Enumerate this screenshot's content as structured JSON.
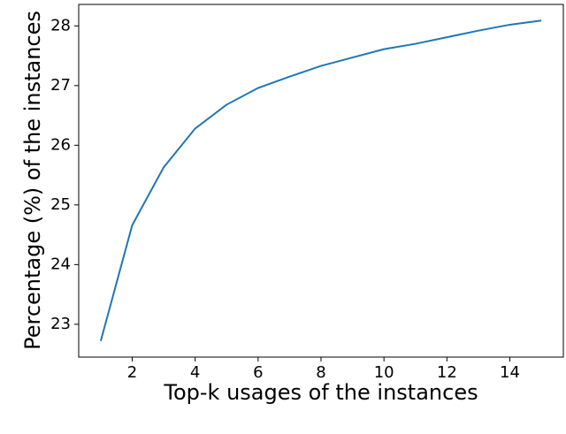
{
  "chart_data": {
    "type": "line",
    "x_label": "Top-k usages of the instances",
    "y_label": "Percentage (%) of the instances",
    "x": [
      1,
      2,
      3,
      4,
      5,
      6,
      7,
      8,
      9,
      10,
      11,
      12,
      13,
      14,
      15
    ],
    "series": [
      {
        "name": "Percentage",
        "color": "#1f77b4",
        "values": [
          22.72,
          24.66,
          25.63,
          26.28,
          26.68,
          26.96,
          27.15,
          27.33,
          27.47,
          27.61,
          27.7,
          27.81,
          27.92,
          28.02,
          28.09
        ]
      }
    ],
    "xlim": [
      0.3,
      15.7
    ],
    "xticks": [
      2,
      4,
      6,
      8,
      10,
      12,
      14
    ],
    "ylim": [
      22.45,
      28.36
    ],
    "yticks": [
      23,
      24,
      25,
      26,
      27,
      28
    ]
  }
}
